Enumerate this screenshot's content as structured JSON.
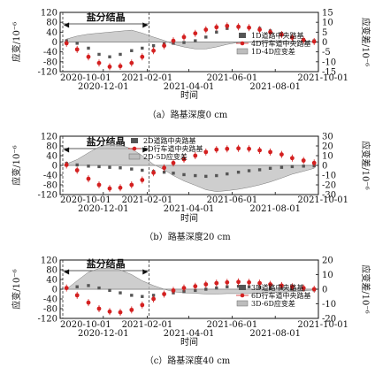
{
  "chart_data": [
    {
      "type": "line",
      "caption": "（a）路基深度0 cm",
      "ylabel": "应变/10⁻⁶",
      "y2label": "应变差/10⁻⁶",
      "xlabel": "时间",
      "ylim": [
        -120,
        120
      ],
      "yticks": [
        -120,
        -80,
        -40,
        0,
        40,
        80,
        120
      ],
      "y2lim": [
        -15,
        15
      ],
      "y2ticks": [
        -15,
        -10,
        -5,
        0,
        5,
        10,
        15
      ],
      "annotation": "盐分结晶",
      "legend": [
        "1D道路中央路基",
        "4D行车道中央路基",
        "1D-4D应变差"
      ],
      "legend_position": "right-middle",
      "x": [
        "2020-10-10",
        "2020-10-25",
        "2020-11-10",
        "2020-11-25",
        "2020-12-10",
        "2020-12-25",
        "2021-01-10",
        "2021-01-25",
        "2021-02-10",
        "2021-02-25",
        "2021-03-10",
        "2021-03-25",
        "2021-04-10",
        "2021-04-25",
        "2021-05-10",
        "2021-05-25",
        "2021-06-10",
        "2021-06-25",
        "2021-07-10",
        "2021-07-25",
        "2021-08-10",
        "2021-08-25",
        "2021-09-10",
        "2021-09-25"
      ],
      "series": [
        {
          "name": "1D道路中央路基",
          "axis": "left",
          "values": [
            5,
            -5,
            -25,
            -50,
            -60,
            -50,
            -35,
            -25,
            -15,
            -8,
            -5,
            -2,
            5,
            20,
            40,
            55,
            60,
            58,
            55,
            45,
            35,
            20,
            10,
            5
          ]
        },
        {
          "name": "4D行车道中央路基",
          "axis": "left",
          "values": [
            -5,
            -30,
            -60,
            -85,
            -100,
            -98,
            -85,
            -60,
            -35,
            -15,
            5,
            20,
            35,
            50,
            60,
            65,
            62,
            58,
            50,
            40,
            30,
            18,
            8,
            2
          ]
        },
        {
          "name": "1D-4D应变差",
          "axis": "right",
          "values": [
            1.5,
            3,
            4,
            4.5,
            5,
            5.5,
            6,
            4.5,
            2.5,
            0.8,
            -1.2,
            -2.5,
            -3.5,
            -3.5,
            -2.5,
            -1.2,
            -0.2,
            0,
            0.6,
            0.6,
            0.6,
            0.2,
            0.2,
            0.3
          ]
        }
      ]
    },
    {
      "type": "line",
      "caption": "（b）路基深度20 cm",
      "ylabel": "应变/10⁻⁶",
      "y2label": "应变差/10⁻⁶",
      "xlabel": "时间",
      "ylim": [
        -120,
        120
      ],
      "yticks": [
        -120,
        -80,
        -40,
        0,
        40,
        80,
        120
      ],
      "y2lim": [
        -30,
        30
      ],
      "y2ticks": [
        -30,
        -20,
        -10,
        0,
        10,
        20,
        30
      ],
      "annotation": "盐分结晶",
      "legend": [
        "2D道路中央路基",
        "5D行车道中央路基",
        "2D-5D应变差"
      ],
      "legend_position": "top-center",
      "x": [
        "2020-10-10",
        "2020-10-25",
        "2020-11-10",
        "2020-11-25",
        "2020-12-10",
        "2020-12-25",
        "2021-01-10",
        "2021-01-25",
        "2021-02-10",
        "2021-02-25",
        "2021-03-10",
        "2021-03-25",
        "2021-04-10",
        "2021-04-25",
        "2021-05-10",
        "2021-05-25",
        "2021-06-10",
        "2021-06-25",
        "2021-07-10",
        "2021-07-25",
        "2021-08-10",
        "2021-08-25",
        "2021-09-10",
        "2021-09-25"
      ],
      "series": [
        {
          "name": "2D道路中央路基",
          "axis": "left",
          "values": [
            8,
            2,
            -3,
            -5,
            -8,
            -10,
            -15,
            -20,
            -25,
            -28,
            -32,
            -38,
            -42,
            -45,
            -42,
            -35,
            -28,
            -22,
            -18,
            -12,
            -8,
            -5,
            -3,
            -2
          ]
        },
        {
          "name": "5D行车道中央路基",
          "axis": "left",
          "values": [
            2,
            -20,
            -55,
            -80,
            -95,
            -92,
            -80,
            -60,
            -30,
            -10,
            10,
            25,
            40,
            55,
            65,
            68,
            70,
            68,
            62,
            55,
            45,
            30,
            20,
            10
          ]
        },
        {
          "name": "2D-5D应变差",
          "axis": "right",
          "values": [
            1.5,
            6,
            13,
            19,
            22,
            21,
            17,
            10,
            1,
            -4.5,
            -10.5,
            -16,
            -20.5,
            -25,
            -27,
            -26,
            -24.5,
            -22.5,
            -20,
            -17,
            -13,
            -9,
            -6,
            -3
          ]
        }
      ]
    },
    {
      "type": "line",
      "caption": "（c）路基深度40 cm",
      "ylabel": "应变/10⁻⁶",
      "y2label": "应变差/10⁻⁶",
      "xlabel": "时间",
      "ylim": [
        -120,
        120
      ],
      "yticks": [
        -120,
        -80,
        -40,
        0,
        40,
        80,
        120
      ],
      "y2lim": [
        -20,
        20
      ],
      "y2ticks": [
        -20,
        -10,
        0,
        10,
        20
      ],
      "annotation": "盐分结晶",
      "legend": [
        "3D道路中央路基",
        "6D行车道中央路基",
        "3D-6D应变差"
      ],
      "legend_position": "right-middle",
      "x": [
        "2020-10-10",
        "2020-10-25",
        "2020-11-10",
        "2020-11-25",
        "2020-12-10",
        "2020-12-25",
        "2021-01-10",
        "2021-01-25",
        "2021-02-10",
        "2021-02-25",
        "2021-03-10",
        "2021-03-25",
        "2021-04-10",
        "2021-04-25",
        "2021-05-10",
        "2021-05-25",
        "2021-06-10",
        "2021-06-25",
        "2021-07-10",
        "2021-07-25",
        "2021-08-10",
        "2021-08-25",
        "2021-09-10",
        "2021-09-25"
      ],
      "series": [
        {
          "name": "3D道路中央路基",
          "axis": "left",
          "values": [
            5,
            10,
            15,
            5,
            -5,
            -15,
            -25,
            -30,
            -25,
            -20,
            -15,
            -10,
            -5,
            0,
            5,
            10,
            12,
            10,
            8,
            5,
            3,
            0,
            -2,
            -3
          ]
        },
        {
          "name": "6D行车道中央路基",
          "axis": "left",
          "values": [
            5,
            -25,
            -55,
            -80,
            -92,
            -95,
            -85,
            -65,
            -40,
            -20,
            -5,
            5,
            12,
            20,
            25,
            28,
            30,
            28,
            25,
            20,
            15,
            10,
            5,
            0
          ]
        },
        {
          "name": "3D-6D应变差",
          "axis": "right",
          "values": [
            0,
            5.8,
            11.7,
            14.2,
            14.5,
            13.3,
            10,
            5.8,
            2.5,
            0,
            -1.7,
            -2.5,
            -2.8,
            -3.3,
            -3.3,
            -3,
            -3,
            -3,
            -2.8,
            -2.5,
            -2,
            -1.7,
            -1.2,
            -0.5
          ]
        }
      ]
    }
  ],
  "x_tick_labels_top": [
    "2020-10-01",
    "2021-02-01",
    "2021-06-01",
    "2021-10-01"
  ],
  "x_tick_labels_bottom": [
    "2020-12-01",
    "2021-04-01",
    "2021-08-01"
  ],
  "colors": {
    "series_a": "#555555",
    "series_b": "#d42020",
    "fill": "#bdbdbd",
    "axis": "#111111"
  }
}
